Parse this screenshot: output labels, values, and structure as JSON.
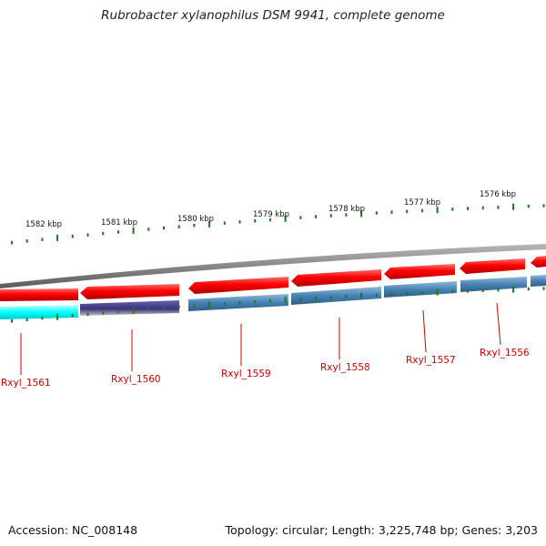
{
  "title": "Rubrobacter xylanophilus DSM 9941, complete genome",
  "footer": {
    "accession": "Accession: NC_008148",
    "summary": "Topology: circular; Length: 3,225,748 bp; Genes: 3,203"
  },
  "scale_labels": [
    "1582 kbp",
    "1581 kbp",
    "1580 kbp",
    "1579 kbp",
    "1578 kbp",
    "1577 kbp",
    "1576 kbp"
  ],
  "gene_labels": [
    "Rxyl_1561",
    "Rxyl_1560",
    "Rxyl_1559",
    "Rxyl_1558",
    "Rxyl_1557",
    "Rxyl_1556"
  ],
  "colors": {
    "forward_strand": "#ff0000",
    "reverse_cds": "#4682b4",
    "gene_cyan": "#00ffff",
    "gene_purple": "#483d8b",
    "backbone": "#808080",
    "ticks": "#1a7a1a",
    "labels": "#cc0000"
  }
}
